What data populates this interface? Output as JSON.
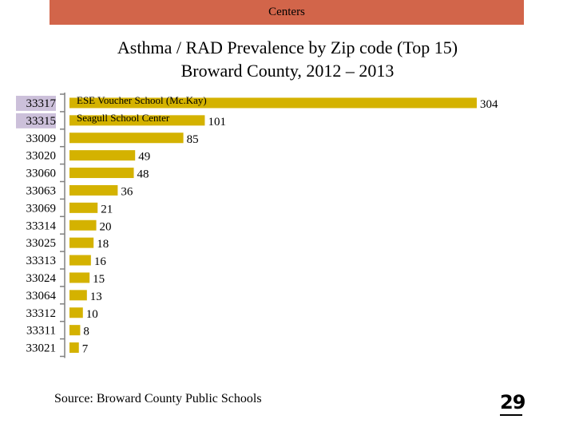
{
  "header": {
    "banner_text": "Centers"
  },
  "footer": {
    "source": "Source: Broward County Public Schools",
    "page_number": "29"
  },
  "colors": {
    "banner": "#d2654a",
    "bar": "#d4b200",
    "highlight": "#ccc0da"
  },
  "chart_data": {
    "type": "bar",
    "orientation": "horizontal",
    "title": "Asthma / RAD Prevalence by Zip code (Top 15)",
    "subtitle": "Broward County, 2012 – 2013",
    "categories": [
      "33317",
      "33315",
      "33009",
      "33020",
      "33060",
      "33063",
      "33069",
      "33314",
      "33025",
      "33313",
      "33024",
      "33064",
      "33312",
      "33311",
      "33021"
    ],
    "values": [
      304,
      101,
      85,
      49,
      48,
      36,
      21,
      20,
      18,
      16,
      15,
      13,
      10,
      8,
      7
    ],
    "highlighted": [
      "33317",
      "33315"
    ],
    "annotations": [
      {
        "category": "33317",
        "text": "ESE Voucher School (Mc.Kay)"
      },
      {
        "category": "33315",
        "text": "Seagull School Center"
      }
    ],
    "xlim": [
      0,
      304
    ],
    "grid": false,
    "legend": "none"
  }
}
